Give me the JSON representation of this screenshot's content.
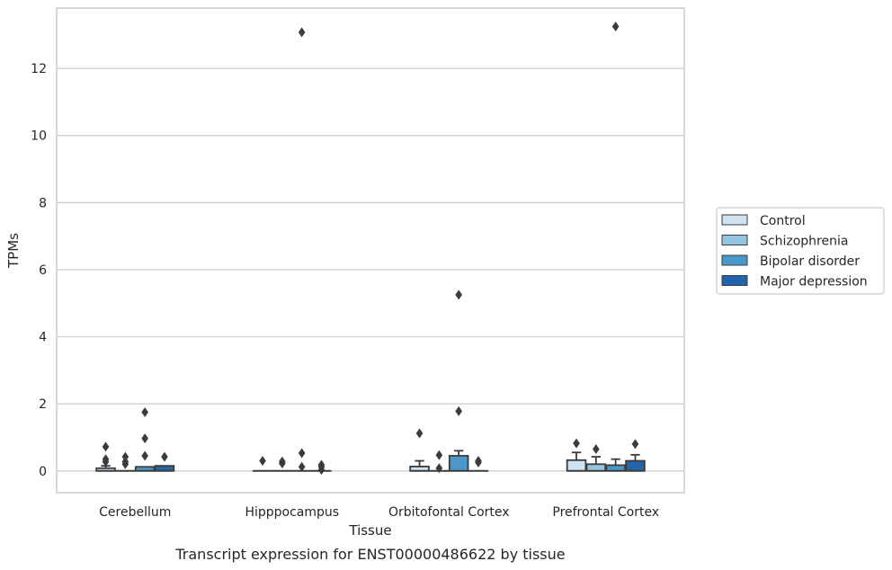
{
  "caption": "Transcript expression for ENST00000486622 by tissue",
  "chart_data": {
    "type": "box",
    "xlabel": "Tissue",
    "ylabel": "TPMs",
    "ylim": [
      -0.65,
      13.8
    ],
    "yticks": [
      0,
      2,
      4,
      6,
      8,
      10,
      12
    ],
    "grid": "horizontal",
    "legend_position": "right",
    "categories": [
      "Cerebellum",
      "Hipppocampus",
      "Orbitofontal Cortex",
      "Prefrontal Cortex"
    ],
    "series": [
      {
        "name": "Control",
        "color": "#d0e1f2",
        "boxes": [
          {
            "q1": 0.0,
            "median": 0.0,
            "q3": 0.08,
            "whisker_low": 0.0,
            "whisker_high": 0.15,
            "outliers": [
              0.72,
              0.35,
              0.27
            ]
          },
          {
            "q1": 0.0,
            "median": 0.0,
            "q3": 0.0,
            "whisker_low": 0.0,
            "whisker_high": 0.0,
            "outliers": [
              0.3
            ]
          },
          {
            "q1": 0.0,
            "median": 0.0,
            "q3": 0.13,
            "whisker_low": 0.0,
            "whisker_high": 0.3,
            "outliers": [
              1.12
            ]
          },
          {
            "q1": 0.0,
            "median": 0.0,
            "q3": 0.32,
            "whisker_low": 0.0,
            "whisker_high": 0.55,
            "outliers": [
              0.82
            ]
          }
        ]
      },
      {
        "name": "Schizophrenia",
        "color": "#94c4df",
        "boxes": [
          {
            "q1": 0.0,
            "median": 0.0,
            "q3": 0.0,
            "whisker_low": 0.0,
            "whisker_high": 0.0,
            "outliers": [
              0.42,
              0.27,
              0.2
            ]
          },
          {
            "q1": 0.0,
            "median": 0.0,
            "q3": 0.0,
            "whisker_low": 0.0,
            "whisker_high": 0.0,
            "outliers": [
              0.28,
              0.22
            ]
          },
          {
            "q1": 0.0,
            "median": 0.0,
            "q3": 0.0,
            "whisker_low": 0.0,
            "whisker_high": 0.0,
            "outliers": [
              0.47,
              0.08
            ]
          },
          {
            "q1": 0.0,
            "median": 0.0,
            "q3": 0.2,
            "whisker_low": 0.0,
            "whisker_high": 0.42,
            "outliers": [
              0.65
            ]
          }
        ]
      },
      {
        "name": "Bipolar disorder",
        "color": "#4a98c9",
        "boxes": [
          {
            "q1": 0.0,
            "median": 0.0,
            "q3": 0.12,
            "whisker_low": 0.0,
            "whisker_high": 0.12,
            "outliers": [
              1.75,
              0.97,
              0.45
            ]
          },
          {
            "q1": 0.0,
            "median": 0.0,
            "q3": 0.0,
            "whisker_low": 0.0,
            "whisker_high": 0.0,
            "outliers": [
              13.08,
              0.53,
              0.12
            ]
          },
          {
            "q1": 0.0,
            "median": 0.0,
            "q3": 0.45,
            "whisker_low": 0.0,
            "whisker_high": 0.6,
            "outliers": [
              5.25,
              1.78
            ]
          },
          {
            "q1": 0.0,
            "median": 0.0,
            "q3": 0.17,
            "whisker_low": 0.0,
            "whisker_high": 0.35,
            "outliers": [
              13.25
            ]
          }
        ]
      },
      {
        "name": "Major depression",
        "color": "#2464ab",
        "boxes": [
          {
            "q1": 0.0,
            "median": 0.0,
            "q3": 0.15,
            "whisker_low": 0.0,
            "whisker_high": 0.15,
            "outliers": [
              0.42
            ]
          },
          {
            "q1": 0.0,
            "median": 0.0,
            "q3": 0.0,
            "whisker_low": 0.0,
            "whisker_high": 0.0,
            "outliers": [
              0.18,
              0.12,
              0.03
            ]
          },
          {
            "q1": 0.0,
            "median": 0.0,
            "q3": 0.0,
            "whisker_low": 0.0,
            "whisker_high": 0.0,
            "outliers": [
              0.3,
              0.25
            ]
          },
          {
            "q1": 0.0,
            "median": 0.0,
            "q3": 0.3,
            "whisker_low": 0.0,
            "whisker_high": 0.48,
            "outliers": [
              0.8
            ]
          }
        ]
      }
    ]
  }
}
